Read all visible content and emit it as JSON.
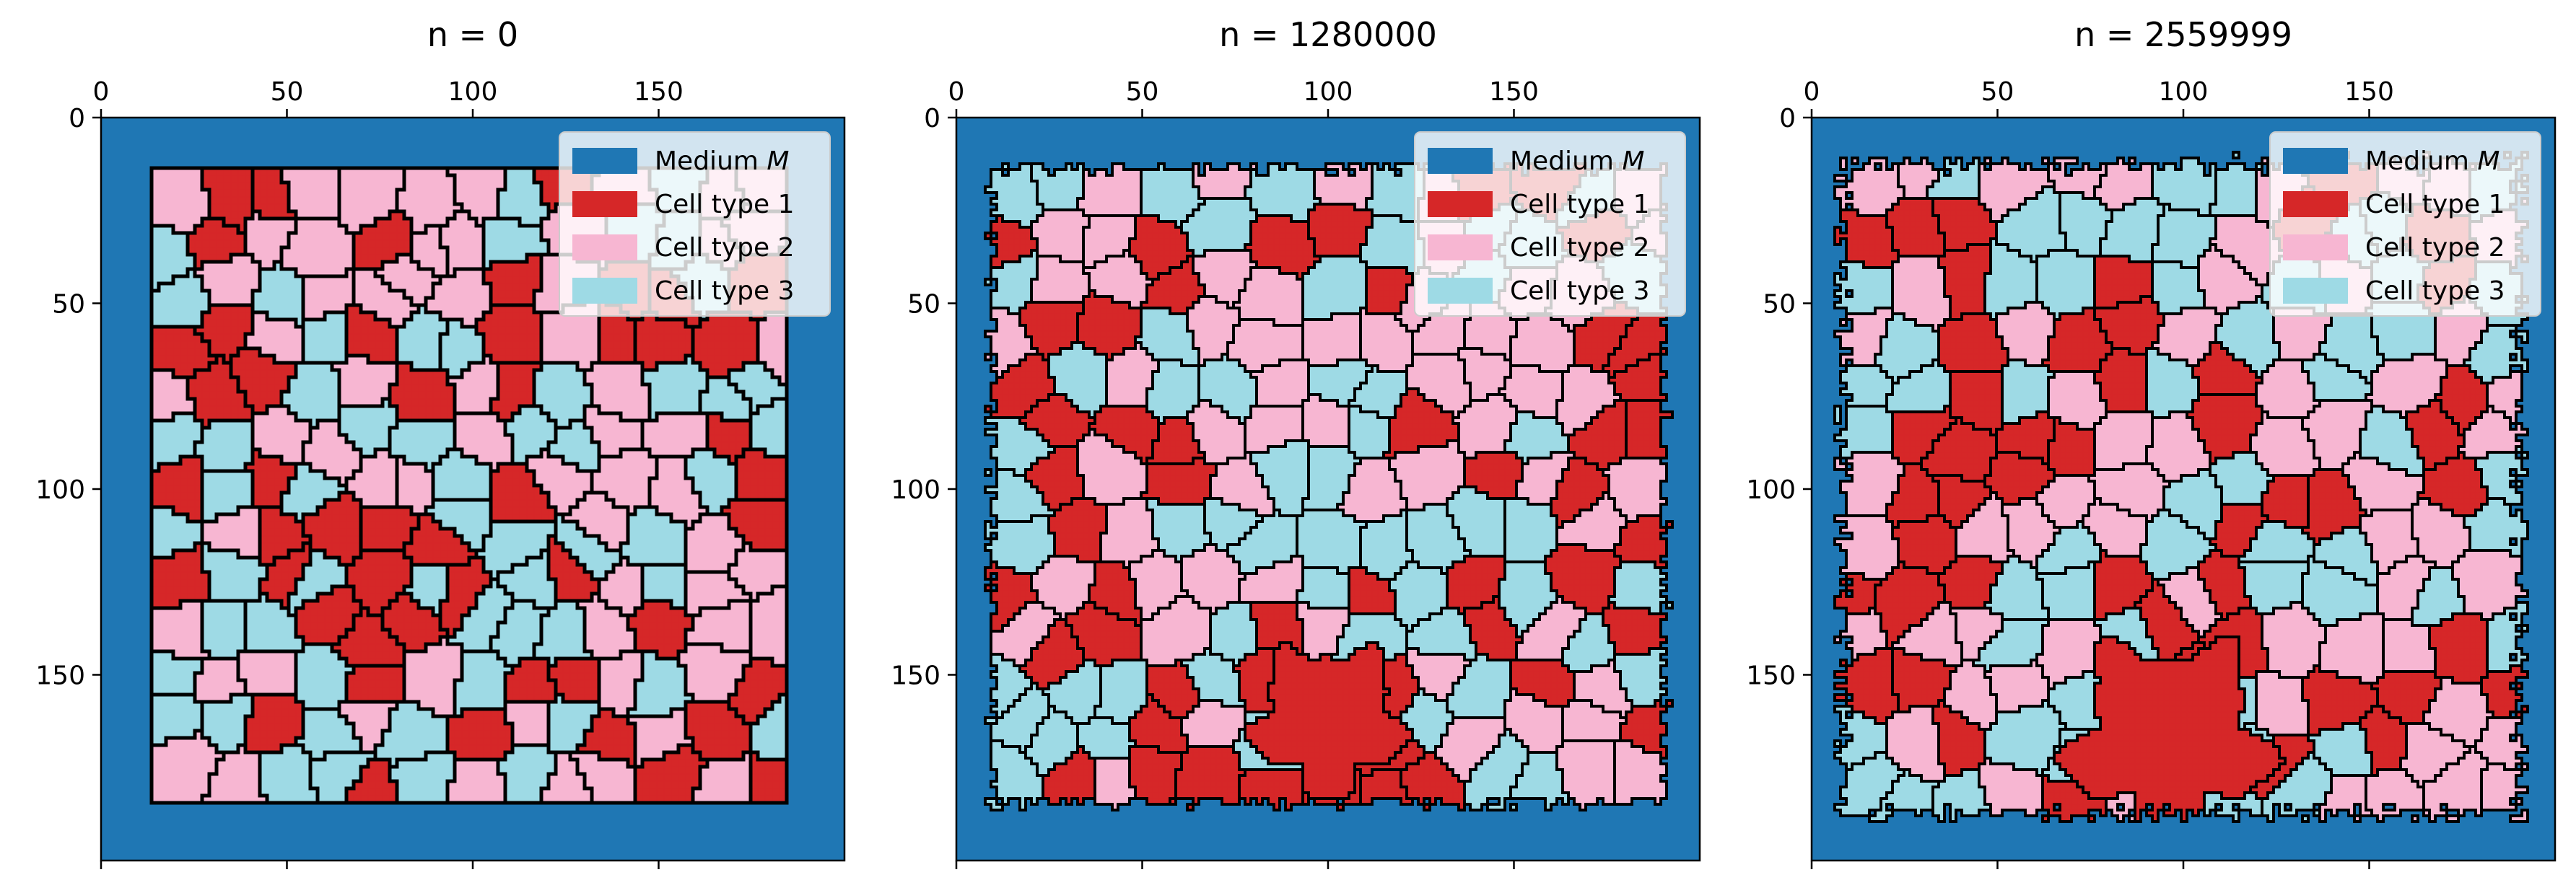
{
  "colors": {
    "medium": "#1f77b4",
    "cell_type_1": "#d62728",
    "cell_type_2": "#f7b6d2",
    "cell_type_3": "#9edae5",
    "boundary": "#000000"
  },
  "legend": {
    "placement": "upper right",
    "entries": [
      {
        "label": "Medium ",
        "math": "M",
        "color_key": "medium"
      },
      {
        "label": "Cell type 1",
        "math": "",
        "color_key": "cell_type_1"
      },
      {
        "label": "Cell type 2",
        "math": "",
        "color_key": "cell_type_2"
      },
      {
        "label": "Cell type 3",
        "math": "",
        "color_key": "cell_type_3"
      }
    ]
  },
  "chart_data": [
    {
      "type": "heatmap",
      "title": "n = 0",
      "x_ticks": [
        0,
        50,
        100,
        150
      ],
      "y_ticks": [
        0,
        50,
        100,
        150
      ],
      "xlim": [
        0,
        200
      ],
      "ylim": [
        200,
        0
      ],
      "x_axis_position": "top",
      "grid": false,
      "lattice_size": 200,
      "cell_block": {
        "x": [
          14,
          185
        ],
        "y": [
          14,
          184
        ]
      },
      "pattern": "initial Voronoi-like tiling with straight polygonal cell boundaries and horizontal strips at the bottom-left"
    },
    {
      "type": "heatmap",
      "title": "n = 1280000",
      "x_ticks": [
        0,
        50,
        100,
        150
      ],
      "y_ticks": [
        0,
        50,
        100,
        150
      ],
      "xlim": [
        0,
        200
      ],
      "ylim": [
        200,
        0
      ],
      "x_axis_position": "top",
      "grid": false,
      "lattice_size": 200,
      "cell_block": {
        "x": [
          8,
          192
        ],
        "y": [
          12,
          186
        ]
      },
      "pattern": "relaxed rounded cells with jagged outer edge; large type-1 cluster near bottom-center"
    },
    {
      "type": "heatmap",
      "title": "n = 2559999",
      "x_ticks": [
        0,
        50,
        100,
        150
      ],
      "y_ticks": [
        0,
        50,
        100,
        150
      ],
      "xlim": [
        0,
        200
      ],
      "ylim": [
        200,
        0
      ],
      "x_axis_position": "top",
      "grid": false,
      "lattice_size": 200,
      "cell_block": {
        "x": [
          6,
          193
        ],
        "y": [
          10,
          190
        ]
      },
      "pattern": "further relaxed cells, ragged outer edge; large type-1 aggregate at bottom-center"
    }
  ]
}
